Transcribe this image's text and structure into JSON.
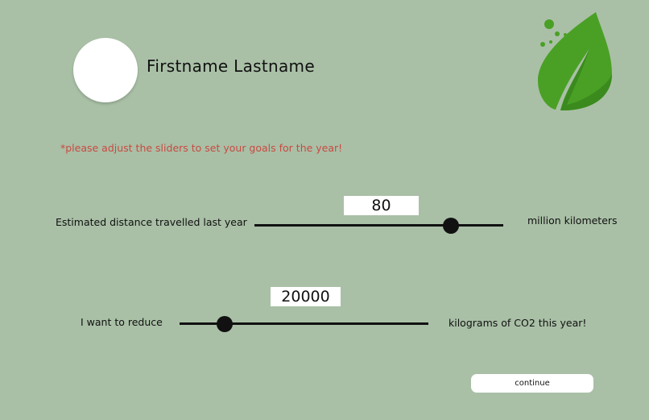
{
  "user": {
    "name": "Firstname Lastname"
  },
  "logo": {
    "icon": "leaf-icon",
    "colors": [
      "#4aa025",
      "#3b8a1e"
    ]
  },
  "instruction": "*please adjust the sliders to set your goals for the year!",
  "distance_slider": {
    "label": "Estimated distance travelled last year",
    "value": "80",
    "unit_label": "million kilometers",
    "level": 0.79
  },
  "reduce_slider": {
    "label": "I want to reduce",
    "value": "20000",
    "unit_label": "kilograms of CO2 this year!",
    "level": 0.18
  },
  "continue_button": {
    "label": "continue"
  },
  "colors": {
    "background": "#a9c0a6",
    "instruction": "#c94a43",
    "leaf": "#4aa025"
  }
}
